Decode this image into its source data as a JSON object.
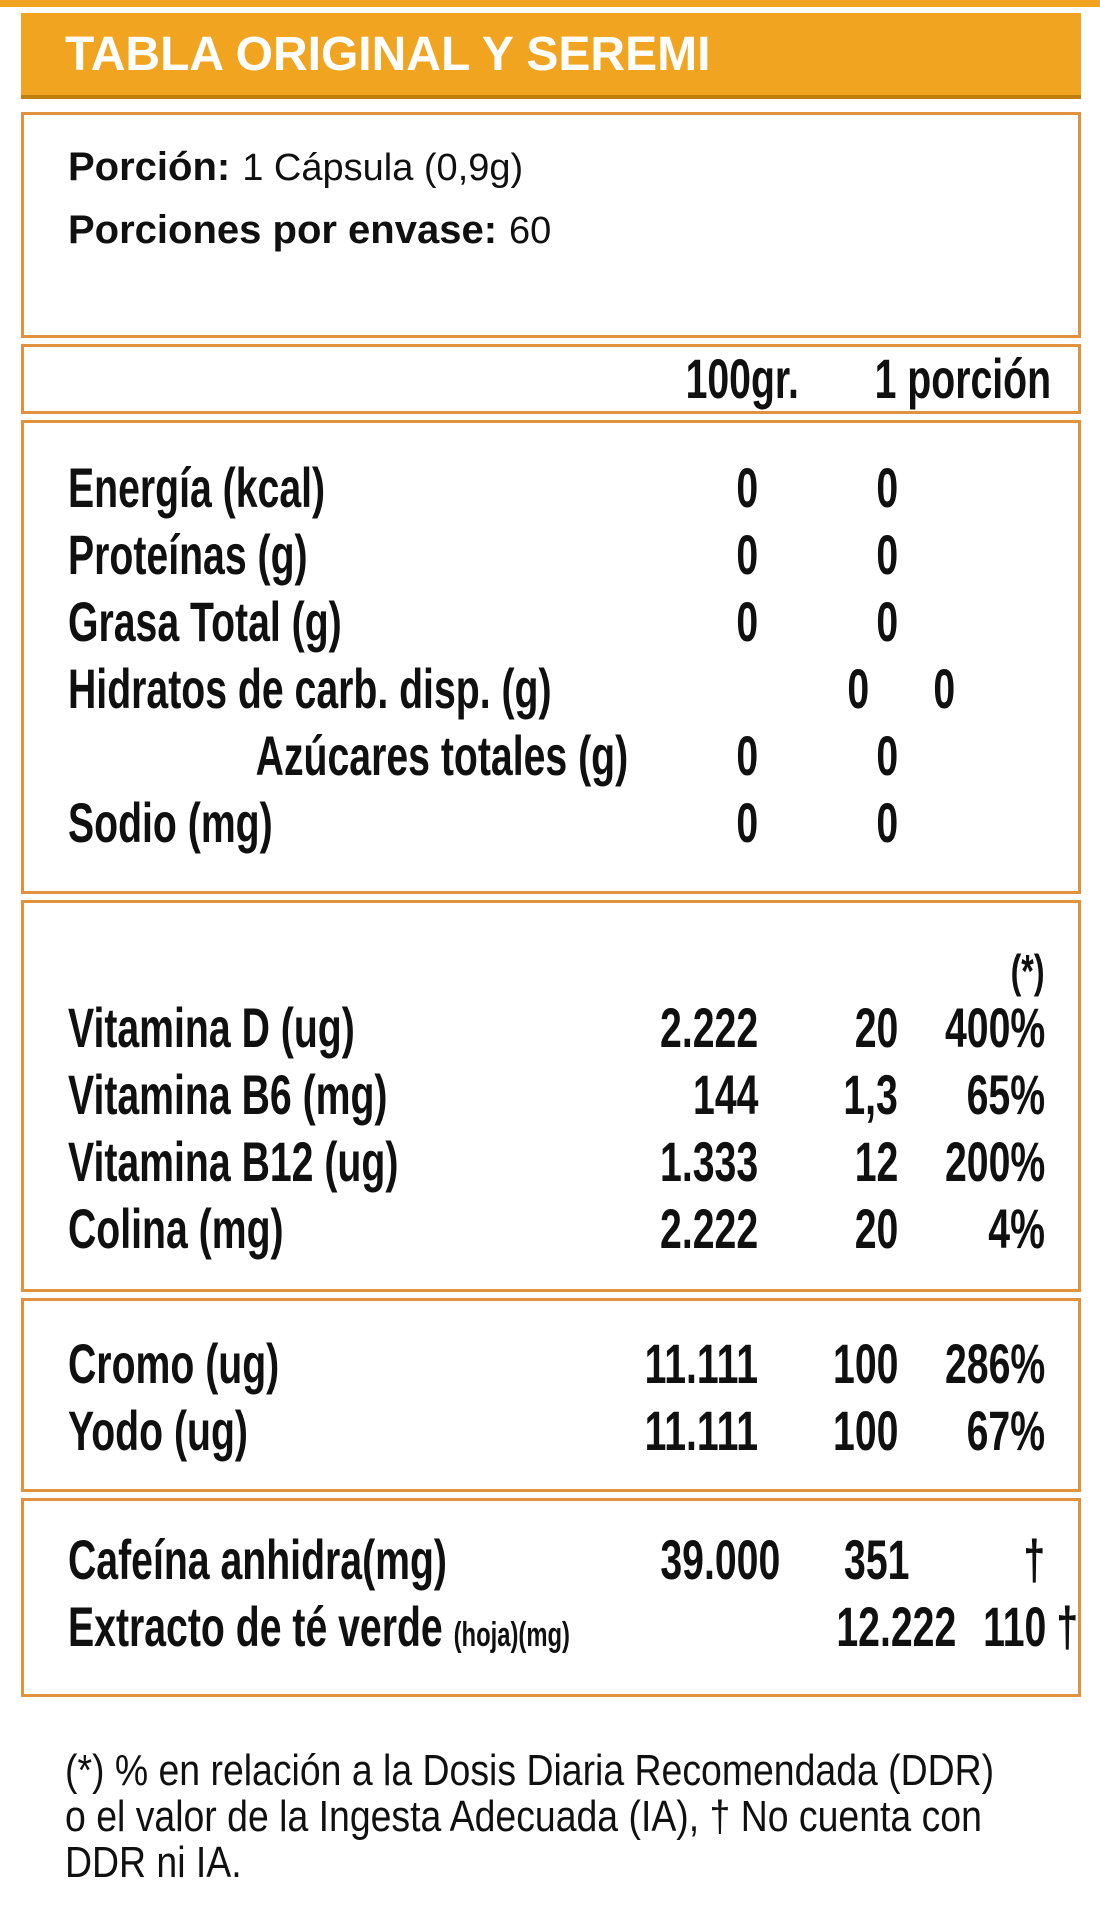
{
  "colors": {
    "accent_orange": "#F0A41F",
    "accent_orange_dark": "#BF7F0C",
    "table_border": "#E2923E",
    "text": "#101010",
    "title_text": "#FFFFFF",
    "background": "#FFFFFF"
  },
  "header": {
    "title": "TABLA ORIGINAL Y SEREMI"
  },
  "serving": {
    "portion_label": "Porción:",
    "portion_value": "1 Cápsula (0,9g)",
    "servings_label": "Porciones por envase:",
    "servings_value": "60"
  },
  "columns": {
    "per_100": "100gr.",
    "per_portion": "1 porción",
    "pct_marker": "(*)"
  },
  "sections": {
    "macros": {
      "rows": [
        {
          "label": "Energía (kcal)",
          "per100": "0",
          "portion": "0",
          "pct": ""
        },
        {
          "label": "Proteínas (g)",
          "per100": "0",
          "portion": "0",
          "pct": ""
        },
        {
          "label": "Grasa Total (g)",
          "per100": "0",
          "portion": "0",
          "pct": ""
        },
        {
          "label": "Hidratos de carb. disp. (g)",
          "per100": "0",
          "portion": "0",
          "pct": ""
        },
        {
          "label": "Azúcares totales (g)",
          "per100": "0",
          "portion": "0",
          "pct": ""
        },
        {
          "label": "Sodio (mg)",
          "per100": "0",
          "portion": "0",
          "pct": ""
        }
      ]
    },
    "vitamins": {
      "rows": [
        {
          "label": "Vitamina D (ug)",
          "per100": "2.222",
          "portion": "20",
          "pct": "400%"
        },
        {
          "label": "Vitamina B6 (mg)",
          "per100": "144",
          "portion": "1,3",
          "pct": "65%"
        },
        {
          "label": "Vitamina B12 (ug)",
          "per100": "1.333",
          "portion": "12",
          "pct": "200%"
        },
        {
          "label": "Colina (mg)",
          "per100": "2.222",
          "portion": "20",
          "pct": "4%"
        }
      ]
    },
    "minerals": {
      "rows": [
        {
          "label": "Cromo (ug)",
          "per100": "11.111",
          "portion": "100",
          "pct": "286%"
        },
        {
          "label": "Yodo (ug)",
          "per100": "11.111",
          "portion": "100",
          "pct": "67%"
        }
      ]
    },
    "actives": {
      "rows": [
        {
          "label": "Cafeína anhidra(mg)",
          "label_small": "",
          "per100": "39.000",
          "portion": "351",
          "pct": "†"
        },
        {
          "label": "Extracto de té verde",
          "label_small": "(hoja)(mg)",
          "per100": "12.222",
          "portion": "110",
          "pct": "†"
        }
      ]
    }
  },
  "footer": {
    "lines": [
      "(*) % en relación a la Dosis Diaria Recomendada (DDR)",
      "o el valor de la Ingesta Adecuada (IA), † No cuenta con",
      "DDR ni IA."
    ]
  }
}
